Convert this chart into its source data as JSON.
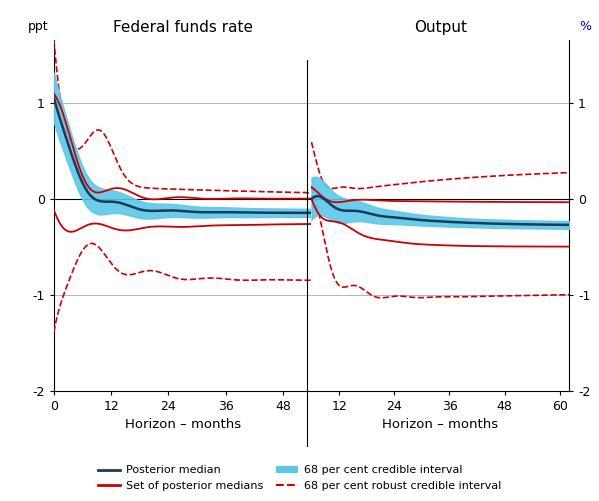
{
  "title_left": "Federal funds rate",
  "title_right": "Output",
  "ylabel_left": "ppt",
  "ylabel_right": "%",
  "xlabel": "Horizon – months",
  "ylim": [
    -2,
    1.65
  ],
  "yticks": [
    -2,
    -1,
    0,
    1
  ],
  "panel1_xticks": [
    0,
    12,
    24,
    36,
    48
  ],
  "panel2_xticks": [
    12,
    24,
    36,
    48,
    60
  ],
  "panel1_xlim": [
    0,
    54
  ],
  "panel2_xlim": [
    6,
    62
  ],
  "bg_color": "#ffffff",
  "grid_color": "#aaaaaa",
  "blue_fill": "#5bc8e8",
  "navy_line": "#1a3a5c",
  "red_solid": "#cc0000",
  "red_dashed": "#cc0000",
  "legend_items": [
    "Posterior median",
    "Set of posterior medians",
    "68 per cent credible interval",
    "68 per cent robust credible interval"
  ]
}
